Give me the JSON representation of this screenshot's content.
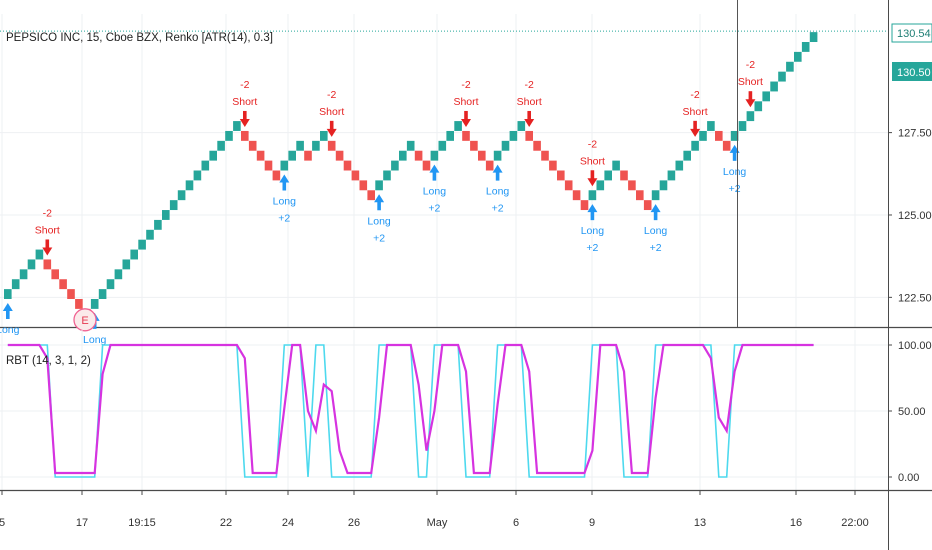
{
  "legend": {
    "main": "PEPSICO INC, 15, Cboe BZX, Renko [ATR(14), 0.3]",
    "indicator": "RBT (14, 3, 1, 2)"
  },
  "price_tags": {
    "last": "130.54",
    "current": "130.50"
  },
  "chart_data": {
    "type": "renko",
    "brick_size": 0.3,
    "bricks": [
      {
        "v": 122.6,
        "c": "up"
      },
      {
        "v": 122.9,
        "c": "up"
      },
      {
        "v": 123.2,
        "c": "up"
      },
      {
        "v": 123.5,
        "c": "up"
      },
      {
        "v": 123.8,
        "c": "up"
      },
      {
        "v": 123.5,
        "c": "down"
      },
      {
        "v": 123.2,
        "c": "down"
      },
      {
        "v": 122.9,
        "c": "down"
      },
      {
        "v": 122.6,
        "c": "down"
      },
      {
        "v": 122.3,
        "c": "down"
      },
      {
        "v": 122.0,
        "c": "down"
      },
      {
        "v": 122.3,
        "c": "up"
      },
      {
        "v": 122.6,
        "c": "up"
      },
      {
        "v": 122.9,
        "c": "up"
      },
      {
        "v": 123.2,
        "c": "up"
      },
      {
        "v": 123.5,
        "c": "up"
      },
      {
        "v": 123.8,
        "c": "up"
      },
      {
        "v": 124.1,
        "c": "up"
      },
      {
        "v": 124.4,
        "c": "up"
      },
      {
        "v": 124.7,
        "c": "up"
      },
      {
        "v": 125.0,
        "c": "up"
      },
      {
        "v": 125.3,
        "c": "up"
      },
      {
        "v": 125.6,
        "c": "up"
      },
      {
        "v": 125.9,
        "c": "up"
      },
      {
        "v": 126.2,
        "c": "up"
      },
      {
        "v": 126.5,
        "c": "up"
      },
      {
        "v": 126.8,
        "c": "up"
      },
      {
        "v": 127.1,
        "c": "up"
      },
      {
        "v": 127.4,
        "c": "up"
      },
      {
        "v": 127.7,
        "c": "up"
      },
      {
        "v": 127.4,
        "c": "down"
      },
      {
        "v": 127.1,
        "c": "down"
      },
      {
        "v": 126.8,
        "c": "down"
      },
      {
        "v": 126.5,
        "c": "down"
      },
      {
        "v": 126.2,
        "c": "down"
      },
      {
        "v": 126.5,
        "c": "up"
      },
      {
        "v": 126.8,
        "c": "up"
      },
      {
        "v": 127.1,
        "c": "up"
      },
      {
        "v": 126.8,
        "c": "down"
      },
      {
        "v": 127.1,
        "c": "up"
      },
      {
        "v": 127.4,
        "c": "up"
      },
      {
        "v": 127.1,
        "c": "down"
      },
      {
        "v": 126.8,
        "c": "down"
      },
      {
        "v": 126.5,
        "c": "down"
      },
      {
        "v": 126.2,
        "c": "down"
      },
      {
        "v": 125.9,
        "c": "down"
      },
      {
        "v": 125.6,
        "c": "down"
      },
      {
        "v": 125.9,
        "c": "up"
      },
      {
        "v": 126.2,
        "c": "up"
      },
      {
        "v": 126.5,
        "c": "up"
      },
      {
        "v": 126.8,
        "c": "up"
      },
      {
        "v": 127.1,
        "c": "up"
      },
      {
        "v": 126.8,
        "c": "down"
      },
      {
        "v": 126.5,
        "c": "down"
      },
      {
        "v": 126.8,
        "c": "up"
      },
      {
        "v": 127.1,
        "c": "up"
      },
      {
        "v": 127.4,
        "c": "up"
      },
      {
        "v": 127.7,
        "c": "up"
      },
      {
        "v": 127.4,
        "c": "down"
      },
      {
        "v": 127.1,
        "c": "down"
      },
      {
        "v": 126.8,
        "c": "down"
      },
      {
        "v": 126.5,
        "c": "down"
      },
      {
        "v": 126.8,
        "c": "up"
      },
      {
        "v": 127.1,
        "c": "up"
      },
      {
        "v": 127.4,
        "c": "up"
      },
      {
        "v": 127.7,
        "c": "up"
      },
      {
        "v": 127.4,
        "c": "down"
      },
      {
        "v": 127.1,
        "c": "down"
      },
      {
        "v": 126.8,
        "c": "down"
      },
      {
        "v": 126.5,
        "c": "down"
      },
      {
        "v": 126.2,
        "c": "down"
      },
      {
        "v": 125.9,
        "c": "down"
      },
      {
        "v": 125.6,
        "c": "down"
      },
      {
        "v": 125.3,
        "c": "down"
      },
      {
        "v": 125.6,
        "c": "up"
      },
      {
        "v": 125.9,
        "c": "up"
      },
      {
        "v": 126.2,
        "c": "up"
      },
      {
        "v": 126.5,
        "c": "up"
      },
      {
        "v": 126.2,
        "c": "down"
      },
      {
        "v": 125.9,
        "c": "down"
      },
      {
        "v": 125.6,
        "c": "down"
      },
      {
        "v": 125.3,
        "c": "down"
      },
      {
        "v": 125.6,
        "c": "up"
      },
      {
        "v": 125.9,
        "c": "up"
      },
      {
        "v": 126.2,
        "c": "up"
      },
      {
        "v": 126.5,
        "c": "up"
      },
      {
        "v": 126.8,
        "c": "up"
      },
      {
        "v": 127.1,
        "c": "up"
      },
      {
        "v": 127.4,
        "c": "up"
      },
      {
        "v": 127.7,
        "c": "up"
      },
      {
        "v": 127.4,
        "c": "down"
      },
      {
        "v": 127.1,
        "c": "down"
      },
      {
        "v": 127.4,
        "c": "up"
      },
      {
        "v": 127.7,
        "c": "up"
      },
      {
        "v": 128.0,
        "c": "up"
      },
      {
        "v": 128.3,
        "c": "up"
      },
      {
        "v": 128.6,
        "c": "up"
      },
      {
        "v": 128.9,
        "c": "up"
      },
      {
        "v": 129.2,
        "c": "up"
      },
      {
        "v": 129.5,
        "c": "up"
      },
      {
        "v": 129.8,
        "c": "up"
      },
      {
        "v": 130.1,
        "c": "up"
      },
      {
        "v": 130.4,
        "c": "up"
      }
    ],
    "price_axis": {
      "ticks": [
        "122.50",
        "125.00",
        "127.50"
      ],
      "range": [
        121.6,
        131.1
      ]
    },
    "time_axis": {
      "ticks": [
        "5",
        "17",
        "19:15",
        "22",
        "24",
        "26",
        "May",
        "6",
        "9",
        "13",
        "16",
        "22:00"
      ]
    },
    "signals": [
      {
        "brick": 5,
        "type": "short",
        "text": [
          "-2",
          "Short"
        ]
      },
      {
        "brick": 30,
        "type": "short",
        "text": [
          "-2",
          "Short"
        ]
      },
      {
        "brick": 41,
        "type": "short",
        "text": [
          "-2",
          "Short"
        ]
      },
      {
        "brick": 58,
        "type": "short",
        "text": [
          "-2",
          "Short"
        ]
      },
      {
        "brick": 66,
        "type": "short",
        "text": [
          "-2",
          "Short"
        ]
      },
      {
        "brick": 74,
        "type": "short",
        "text": [
          "-2",
          "Short"
        ]
      },
      {
        "brick": 87,
        "type": "short",
        "text": [
          "-2",
          "Short"
        ]
      },
      {
        "brick": 94,
        "type": "short",
        "text": [
          "-2",
          "Short"
        ]
      },
      {
        "brick": 0,
        "type": "long",
        "text": [
          "Long"
        ]
      },
      {
        "brick": 11,
        "type": "long",
        "text": [
          "Long"
        ]
      },
      {
        "brick": 35,
        "type": "long",
        "text": [
          "Long",
          "+2"
        ]
      },
      {
        "brick": 47,
        "type": "long",
        "text": [
          "Long",
          "+2"
        ]
      },
      {
        "brick": 54,
        "type": "long",
        "text": [
          "Long",
          "+2"
        ]
      },
      {
        "brick": 62,
        "type": "long",
        "text": [
          "Long",
          "+2"
        ]
      },
      {
        "brick": 74,
        "type": "long",
        "text": [
          "Long",
          "+2"
        ]
      },
      {
        "brick": 82,
        "type": "long",
        "text": [
          "Long",
          "+2"
        ]
      },
      {
        "brick": 92,
        "type": "long",
        "text": [
          "Long",
          "+2"
        ]
      }
    ],
    "event_marker": {
      "brick": 10,
      "label": "E"
    },
    "indicator": {
      "name": "RBT (14, 3, 1, 2)",
      "ticks": [
        "100.00",
        "50.00",
        "0.00"
      ],
      "range": [
        0,
        100
      ],
      "cyan": [
        100,
        100,
        100,
        100,
        100,
        100,
        0,
        0,
        0,
        0,
        0,
        0,
        100,
        100,
        100,
        100,
        100,
        100,
        100,
        100,
        100,
        100,
        100,
        100,
        100,
        100,
        100,
        100,
        100,
        100,
        0,
        0,
        0,
        0,
        0,
        100,
        100,
        100,
        0,
        100,
        100,
        0,
        0,
        0,
        0,
        0,
        0,
        100,
        100,
        100,
        100,
        100,
        0,
        0,
        100,
        100,
        100,
        100,
        0,
        0,
        0,
        0,
        100,
        100,
        100,
        100,
        0,
        0,
        0,
        0,
        0,
        0,
        0,
        0,
        100,
        100,
        100,
        100,
        0,
        0,
        0,
        0,
        100,
        100,
        100,
        100,
        100,
        100,
        100,
        100,
        0,
        0,
        100,
        100,
        100,
        100,
        100,
        100,
        100,
        100,
        100,
        100,
        100
      ],
      "magenta": [
        100,
        100,
        100,
        100,
        100,
        90,
        3,
        3,
        3,
        3,
        3,
        3,
        78,
        100,
        100,
        100,
        100,
        100,
        100,
        100,
        100,
        100,
        100,
        100,
        100,
        100,
        100,
        100,
        100,
        100,
        90,
        3,
        3,
        3,
        3,
        52,
        100,
        100,
        50,
        35,
        70,
        65,
        20,
        3,
        3,
        3,
        3,
        45,
        100,
        100,
        100,
        100,
        70,
        20,
        50,
        100,
        100,
        100,
        80,
        3,
        3,
        3,
        55,
        100,
        100,
        100,
        80,
        3,
        3,
        3,
        3,
        3,
        3,
        3,
        20,
        100,
        100,
        100,
        80,
        3,
        3,
        3,
        60,
        100,
        100,
        100,
        100,
        100,
        100,
        90,
        45,
        35,
        80,
        100,
        100,
        100,
        100,
        100,
        100,
        100,
        100,
        100,
        100
      ]
    }
  }
}
